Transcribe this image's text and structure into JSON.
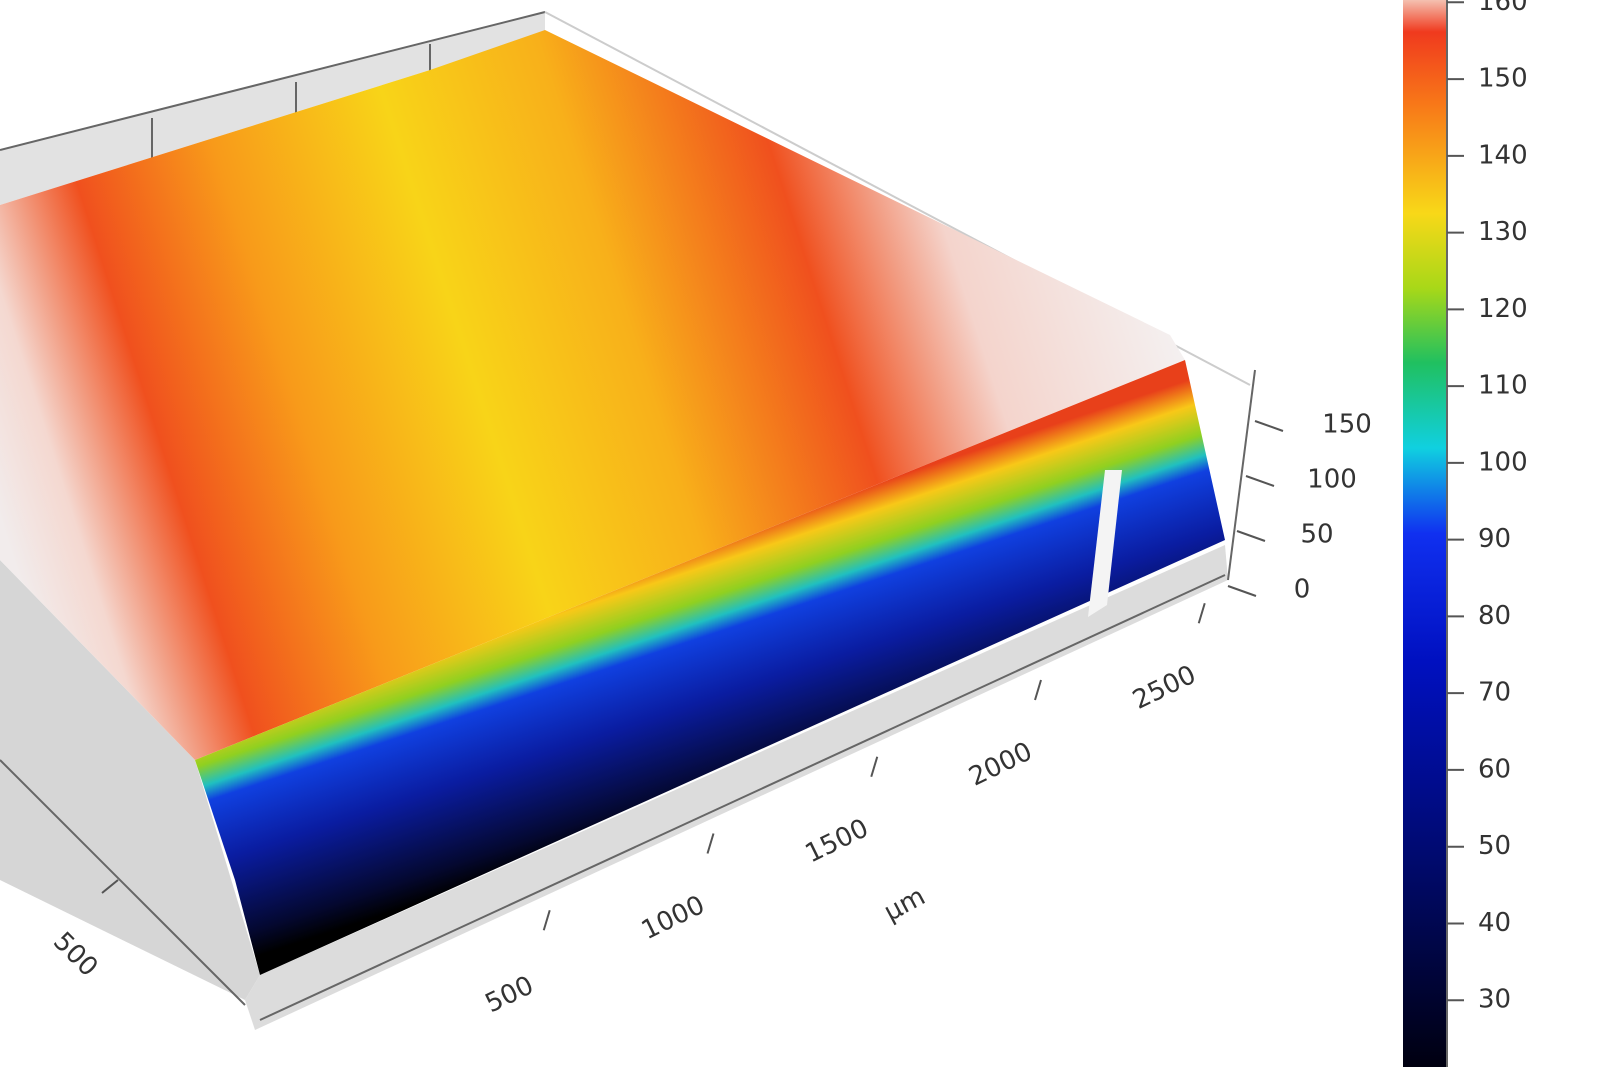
{
  "chart_data": {
    "type": "surface3d",
    "xlabel": "µm",
    "xticks": [
      500,
      1000,
      1500,
      2000,
      2500
    ],
    "yticks": [
      500
    ],
    "zticks": [
      0,
      50,
      100,
      150
    ],
    "colorbar": {
      "lim": [
        21.3,
        160.3
      ],
      "ticks": [
        30,
        40,
        50,
        60,
        70,
        80,
        90,
        100,
        110,
        120,
        130,
        140,
        150,
        160
      ]
    }
  }
}
